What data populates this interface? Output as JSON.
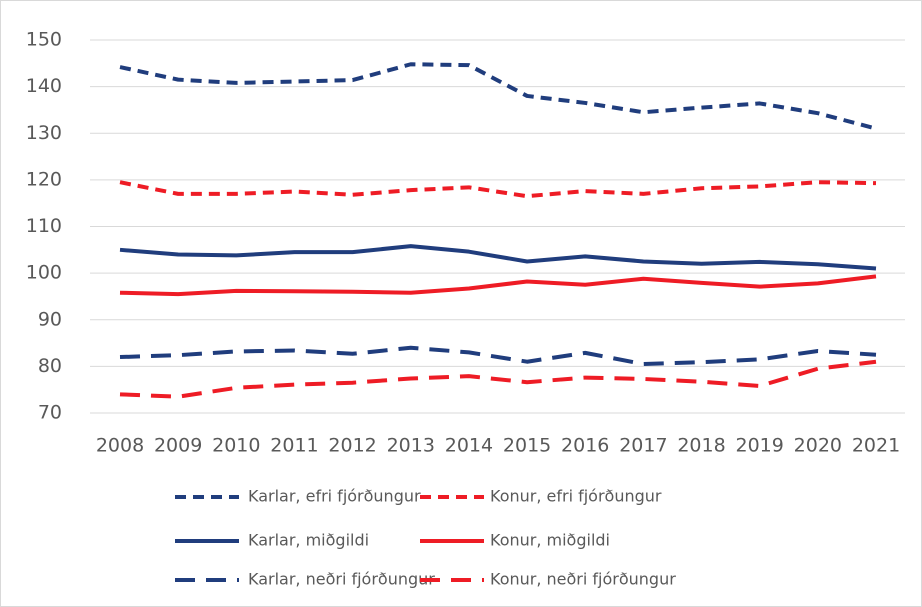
{
  "chart_data": {
    "type": "line",
    "x": [
      "2008",
      "2009",
      "2010",
      "2011",
      "2012",
      "2013",
      "2014",
      "2015",
      "2016",
      "2017",
      "2018",
      "2019",
      "2020",
      "2021"
    ],
    "ylim": [
      70,
      150
    ],
    "yticks": [
      70,
      80,
      90,
      100,
      110,
      120,
      130,
      140,
      150
    ],
    "grid": true,
    "legend": "bottom",
    "series": [
      {
        "name": "Karlar, efri fjórðungur",
        "color": "#203d7d",
        "line_style": "dashed",
        "values": [
          144.2,
          141.5,
          140.8,
          141.1,
          141.4,
          144.8,
          144.6,
          138,
          136.5,
          134.5,
          135.5,
          136.4,
          134.3,
          131
        ]
      },
      {
        "name": "Konur, efri fjórðungur",
        "color": "#ee1c25",
        "line_style": "dashed",
        "values": [
          119.5,
          117,
          117,
          117.5,
          116.8,
          117.8,
          118.4,
          116.5,
          117.6,
          117,
          118.2,
          118.6,
          119.5,
          119.3
        ]
      },
      {
        "name": "Karlar, miðgildi",
        "color": "#203d7d",
        "line_style": "solid",
        "values": [
          105,
          104,
          103.8,
          104.5,
          104.5,
          105.8,
          104.6,
          102.5,
          103.6,
          102.5,
          102,
          102.4,
          101.9,
          101
        ]
      },
      {
        "name": "Konur, miðgildi",
        "color": "#ee1c25",
        "line_style": "solid",
        "values": [
          95.8,
          95.5,
          96.2,
          96.1,
          96,
          95.8,
          96.7,
          98.2,
          97.5,
          98.8,
          97.9,
          97.1,
          97.8,
          99.3
        ]
      },
      {
        "name": "Karlar, neðri fjórðungur",
        "color": "#203d7d",
        "line_style": "long-dashed",
        "values": [
          82,
          82.4,
          83.2,
          83.4,
          82.7,
          84,
          83,
          81,
          82.9,
          80.5,
          80.9,
          81.5,
          83.3,
          82.5
        ]
      },
      {
        "name": "Konur, neðri fjórðungur",
        "color": "#ee1c25",
        "line_style": "long-dashed",
        "values": [
          74,
          73.5,
          75.4,
          76.1,
          76.5,
          77.4,
          77.9,
          76.6,
          77.6,
          77.3,
          76.7,
          75.8,
          79.5,
          81
        ]
      }
    ]
  }
}
